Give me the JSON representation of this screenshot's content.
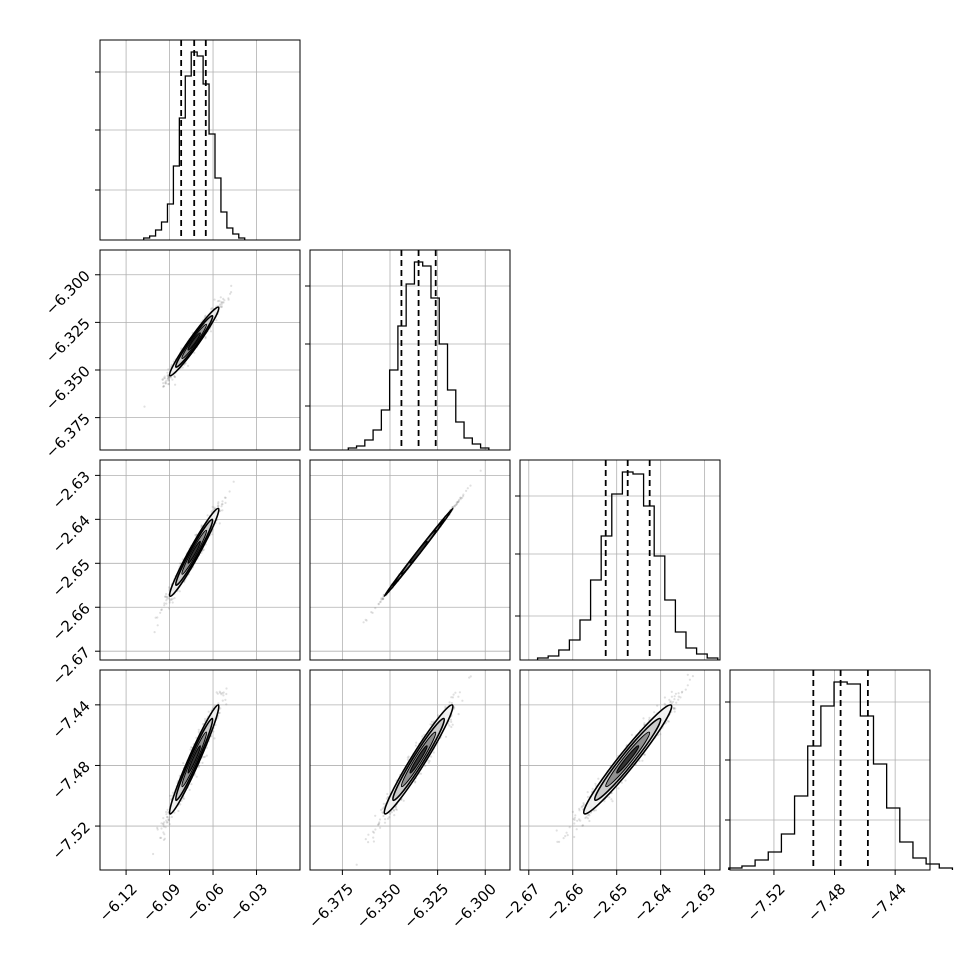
{
  "chart_data": {
    "type": "corner",
    "grid": true,
    "parameters": [
      {
        "range": [
          -6.138,
          -6.0
        ],
        "ticks": [
          -6.12,
          -6.09,
          -6.06,
          -6.03
        ],
        "tick_labels": [
          "−6.12",
          "−6.09",
          "−6.06",
          "−6.03"
        ],
        "quantiles": [
          -6.082,
          -6.073,
          -6.065
        ]
      },
      {
        "range": [
          -6.392,
          -6.287
        ],
        "ticks": [
          -6.375,
          -6.35,
          -6.325,
          -6.3
        ],
        "tick_labels": [
          "−6.375",
          "−6.350",
          "−6.325",
          "−6.300"
        ],
        "quantiles": [
          -6.344,
          -6.335,
          -6.326
        ]
      },
      {
        "range": [
          -2.672,
          -2.6265
        ],
        "ticks": [
          -2.67,
          -2.66,
          -2.65,
          -2.64,
          -2.63
        ],
        "tick_labels": [
          "−2.67",
          "−2.66",
          "−2.65",
          "−2.64",
          "−2.63"
        ],
        "quantiles": [
          -2.6525,
          -2.6475,
          -2.6425
        ]
      },
      {
        "range": [
          -7.549,
          -7.417
        ],
        "ticks": [
          -7.52,
          -7.48,
          -7.44
        ],
        "tick_labels": [
          "−7.52",
          "−7.48",
          "−7.44"
        ],
        "quantiles": [
          -7.494,
          -7.476,
          -7.458
        ]
      }
    ],
    "histograms": [
      {
        "param": 0,
        "counts": [
          1,
          2,
          5,
          9,
          18,
          37,
          61,
          82,
          94,
          92,
          78,
          53,
          31,
          14,
          6,
          3,
          1
        ],
        "ylim": [
          0,
          100
        ],
        "yticks": [
          25,
          55,
          84
        ]
      },
      {
        "param": 1,
        "counts": [
          1,
          2,
          5,
          10,
          20,
          40,
          62,
          83,
          94,
          92,
          76,
          53,
          30,
          14,
          6,
          3,
          1
        ],
        "ylim": [
          0,
          100
        ],
        "yticks": [
          22,
          53,
          82
        ]
      },
      {
        "param": 2,
        "counts": [
          1,
          2,
          5,
          10,
          20,
          40,
          62,
          83,
          94,
          93,
          77,
          52,
          30,
          14,
          6,
          3,
          1
        ],
        "ylim": [
          0,
          100
        ],
        "yticks": [
          22,
          53,
          82
        ]
      },
      {
        "param": 3,
        "counts": [
          1,
          2,
          5,
          9,
          18,
          37,
          62,
          82,
          94,
          93,
          77,
          53,
          31,
          14,
          6,
          3,
          1
        ],
        "ylim": [
          0,
          100
        ],
        "yticks": [
          25,
          55,
          84
        ]
      }
    ],
    "correlations": {
      "1-0": 0.97,
      "2-0": 0.97,
      "2-1": 0.999,
      "3-0": 0.97,
      "3-1": 0.97,
      "3-2": 0.97
    },
    "colors": {
      "points": "#707070",
      "contour": "#000000",
      "grid": "#b0b0b0",
      "quantile": "#000000"
    }
  }
}
